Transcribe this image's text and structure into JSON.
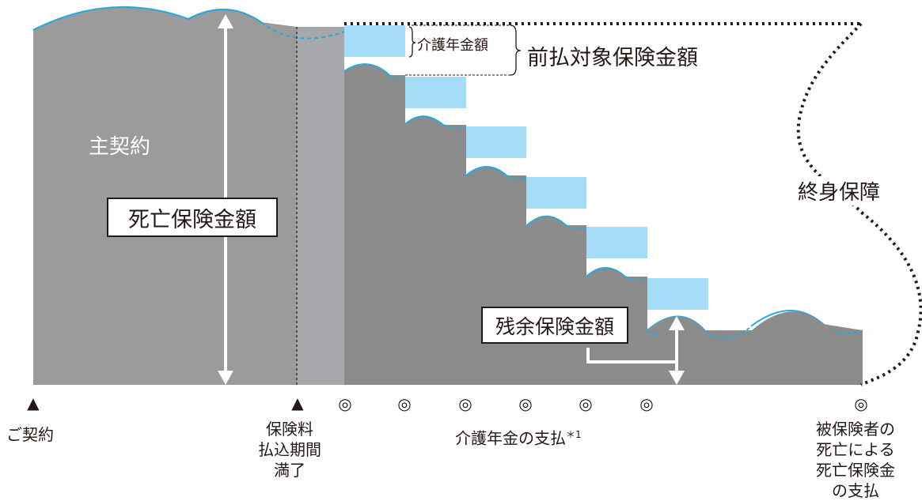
{
  "labels": {
    "main_contract": "主契約",
    "death_benefit": "死亡保険金額",
    "care_pension_amount": "介護年金額",
    "prepay_target": "前払対象保険金額",
    "lifetime_coverage": "終身保障",
    "remaining_amount": "残余保険金額"
  },
  "timeline": {
    "contract": "ご契約",
    "premium_end_lines": [
      "保険料",
      "払込期間",
      "満了"
    ],
    "pension_payment": "介護年金の支払",
    "pension_payment_note": "＊1",
    "death_payment_lines": [
      "被保険者の",
      "死亡による",
      "死亡保険金",
      "の支払"
    ]
  },
  "icons": {
    "triangle": "triangle-up-icon",
    "double_circle": "double-circle-icon"
  },
  "colors": {
    "main_gray": "#9b9b9b",
    "premium_period_gray": "#a7a8ab",
    "remaining_gray": "#8c8c8c",
    "pension_block": "#a5dcf7",
    "wave_line": "#29a7df"
  }
}
